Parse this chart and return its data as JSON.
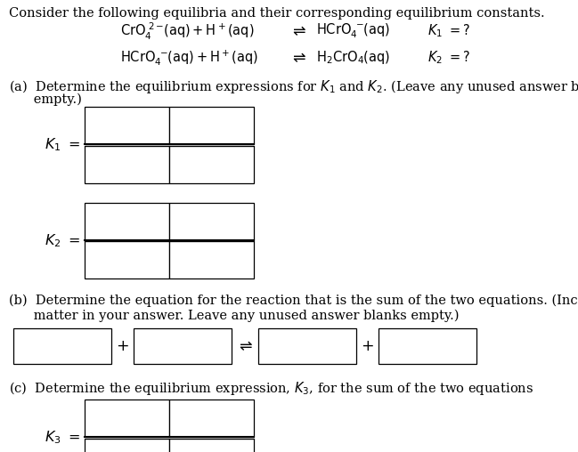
{
  "background_color": "#ffffff",
  "title_text": "Consider the following equilibria and their corresponding equilibrium constants.",
  "title_fontsize": 10.5,
  "title_color": "#000000",
  "text_fontsize": 10.5,
  "label_fontsize": 11.5,
  "box_color": "#000000",
  "box_facecolor": "#ffffff",
  "part_a_line1": "(a)  Determine the equilibrium expressions for $K_1$ and $K_2$. (Leave any unused answer blanks",
  "part_a_line2": "      empty.)",
  "part_b_line1": "(b)  Determine the equation for the reaction that is the sum of the two equations. (Include states of",
  "part_b_line2": "      matter in your answer. Leave any unused answer blanks empty.)",
  "part_c_line1": "(c)  Determine the equilibrium expression, $K_3$, for the sum of the two equations"
}
